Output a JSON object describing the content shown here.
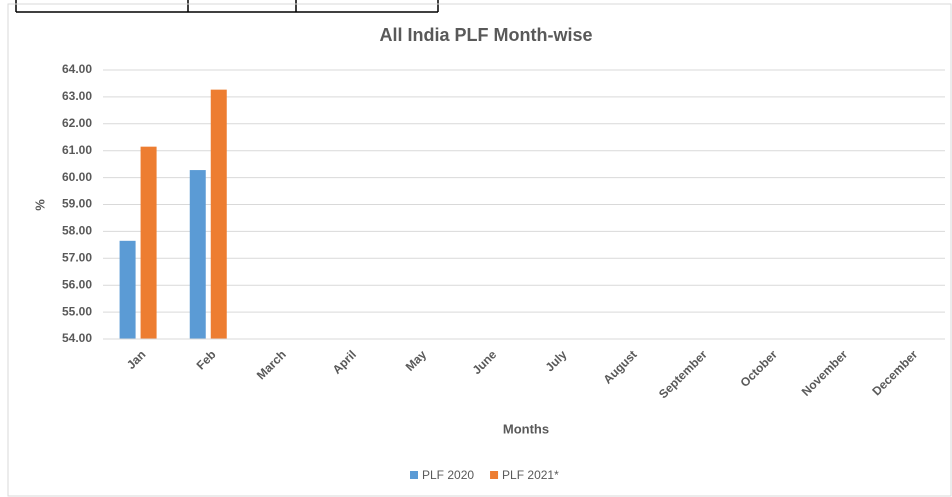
{
  "chart_data": {
    "type": "bar",
    "title": "All India PLF Month-wise",
    "x_label": "Months",
    "y_label": "%",
    "categories": [
      "Jan",
      "Feb",
      "March",
      "April",
      "May",
      "June",
      "July",
      "August",
      "September",
      "October",
      "November",
      "December"
    ],
    "series": [
      {
        "name": "PLF 2020",
        "color": "#5b9bd5",
        "values": [
          57.65,
          60.28,
          null,
          null,
          null,
          null,
          null,
          null,
          null,
          null,
          null,
          null
        ]
      },
      {
        "name": "PLF 2021*",
        "color": "#ed7d31",
        "values": [
          61.15,
          63.27,
          null,
          null,
          null,
          null,
          null,
          null,
          null,
          null,
          null,
          null
        ]
      }
    ],
    "ylim": [
      54,
      64
    ],
    "yticks": [
      {
        "value": 54,
        "label": "54.00"
      },
      {
        "value": 55,
        "label": "55.00"
      },
      {
        "value": 56,
        "label": "56.00"
      },
      {
        "value": 57,
        "label": "57.00"
      },
      {
        "value": 58,
        "label": "58.00"
      },
      {
        "value": 59,
        "label": "59.00"
      },
      {
        "value": 60,
        "label": "60.00"
      },
      {
        "value": 61,
        "label": "61.00"
      },
      {
        "value": 62,
        "label": "62.00"
      },
      {
        "value": 63,
        "label": "63.00"
      },
      {
        "value": 64,
        "label": "64.00"
      }
    ],
    "grid": true,
    "legend": "bottom"
  }
}
